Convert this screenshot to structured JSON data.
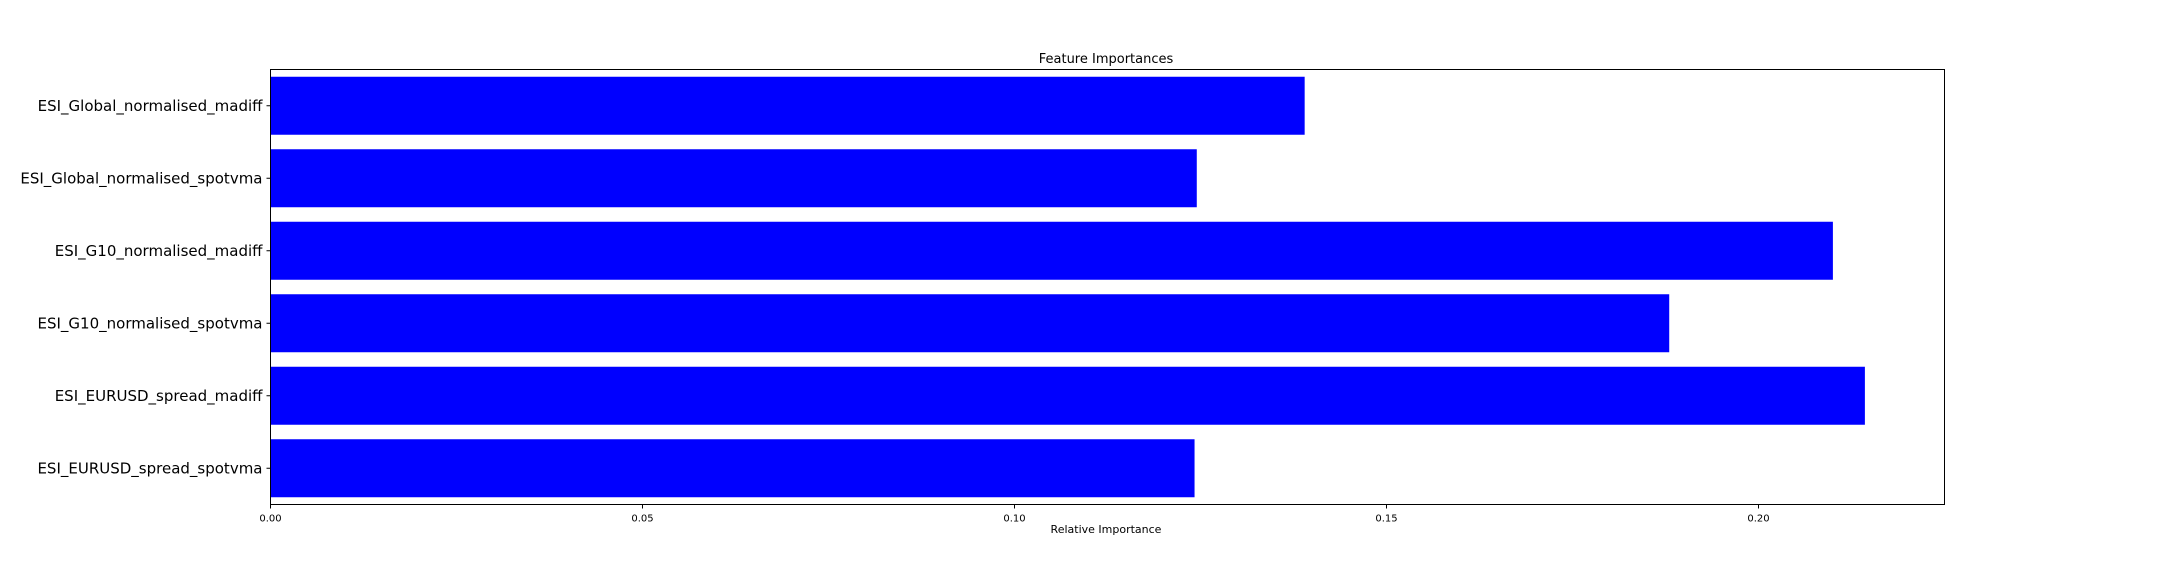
{
  "chart_data": {
    "type": "bar",
    "orientation": "horizontal",
    "title": "Feature Importances",
    "xlabel": "Relative Importance",
    "ylabel": "",
    "categories": [
      "ESI_Global_normalised_madiff",
      "ESI_Global_normalised_spotvma",
      "ESI_G10_normalised_madiff",
      "ESI_G10_normalised_spotvma",
      "ESI_EURUSD_spread_madiff",
      "ESI_EURUSD_spread_spotvma"
    ],
    "values": [
      0.139,
      0.1245,
      0.21,
      0.188,
      0.2143,
      0.1242
    ],
    "xlim": [
      0,
      0.225
    ],
    "xticks": [
      0,
      0.05,
      0.1,
      0.15,
      0.2
    ],
    "xtick_labels": [
      "0.00",
      "0.05",
      "0.10",
      "0.15",
      "0.20"
    ],
    "bar_color": "#0000ff",
    "grid": false,
    "legend": "none"
  }
}
